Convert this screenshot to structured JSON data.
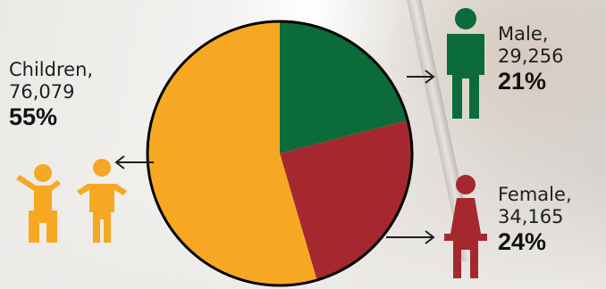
{
  "chart_data": {
    "type": "pie",
    "slices": [
      {
        "label": "Male",
        "count": "29,256",
        "percent": "21%",
        "value": 29256,
        "color": "#0b6b3a"
      },
      {
        "label": "Female",
        "count": "34,165",
        "percent": "24%",
        "value": 34165,
        "color": "#a5282f"
      },
      {
        "label": "Children",
        "count": "76,079",
        "percent": "55%",
        "value": 76079,
        "color": "#f6a823"
      }
    ],
    "start_angle_deg": 0,
    "direction": "clockwise",
    "outline_color": "#000000",
    "arrow_color": "#1f1f1f",
    "icons": [
      {
        "name": "male-person-icon",
        "color": "#0b6b3a"
      },
      {
        "name": "female-person-icon",
        "color": "#a5282f"
      },
      {
        "name": "children-icon",
        "color": "#f6a823"
      }
    ]
  }
}
